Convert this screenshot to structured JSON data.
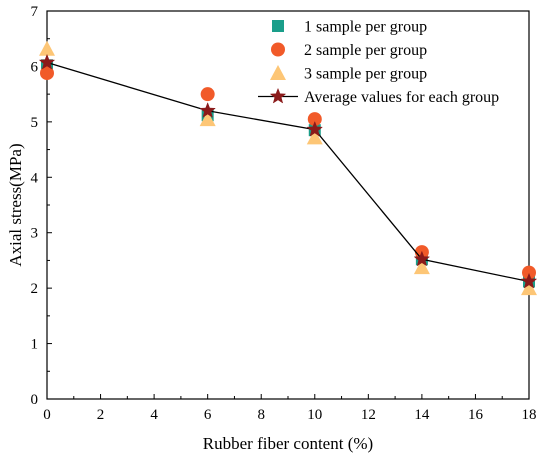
{
  "chart_data": {
    "type": "scatter",
    "title": "",
    "xlabel": "Rubber fiber content (%)",
    "ylabel": "Axial stress(MPa)",
    "xlim": [
      0,
      18
    ],
    "ylim": [
      0,
      7
    ],
    "xticks": [
      0,
      2,
      4,
      6,
      8,
      10,
      12,
      14,
      16,
      18
    ],
    "yticks": [
      0,
      1,
      2,
      3,
      4,
      5,
      6,
      7
    ],
    "grid": false,
    "legend_position": "top-right",
    "series": [
      {
        "name": "1 sample per group",
        "marker": "square",
        "color": "#1a9e8a",
        "line": false,
        "x": [
          0,
          6,
          10,
          14,
          18
        ],
        "y": [
          6.02,
          5.12,
          4.85,
          2.52,
          2.12
        ]
      },
      {
        "name": "2 sample per group",
        "marker": "circle",
        "color": "#f15a29",
        "line": false,
        "x": [
          0,
          6,
          10,
          14,
          18
        ],
        "y": [
          5.88,
          5.5,
          5.05,
          2.65,
          2.28
        ]
      },
      {
        "name": "3 sample per group",
        "marker": "triangle",
        "color": "#fdc676",
        "line": false,
        "x": [
          0,
          6,
          10,
          14,
          18
        ],
        "y": [
          6.32,
          5.05,
          4.72,
          2.38,
          2.0
        ]
      },
      {
        "name": "Average values for each group",
        "marker": "star",
        "color": "#8b1a1a",
        "line": true,
        "line_color": "#000000",
        "x": [
          0,
          6,
          10,
          14,
          18
        ],
        "y": [
          6.07,
          5.2,
          4.86,
          2.52,
          2.12
        ]
      }
    ]
  }
}
